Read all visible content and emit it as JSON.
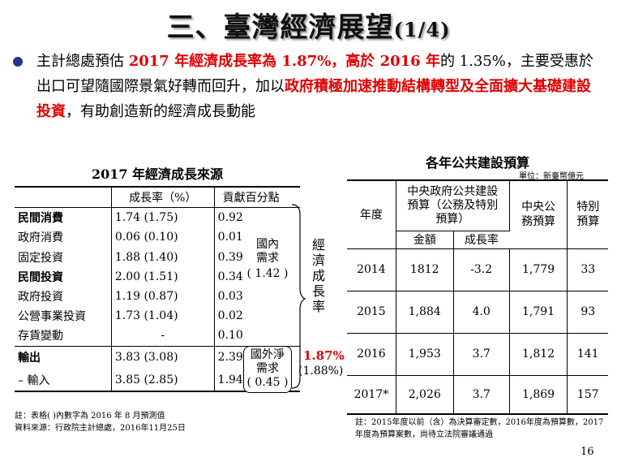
{
  "page": {
    "title_main": "三、臺灣經濟展望",
    "title_suffix": "(1/4)",
    "page_number": "16"
  },
  "bullet": {
    "segments": [
      {
        "text": "主計總處預估 ",
        "style": "normal"
      },
      {
        "text": "2017 年經濟成長率為 1.87%，高於 2016 年",
        "style": "red"
      },
      {
        "text": "的 1.35%，主要受惠於出口可望隨國際景氣好轉而回升，加以",
        "style": "normal"
      },
      {
        "text": "政府積極加速推動結構轉型及全面擴大基礎建設投資",
        "style": "red"
      },
      {
        "text": "，有助創造新的經濟成長動能",
        "style": "normal"
      }
    ]
  },
  "growth_table": {
    "title": "2017 年經濟成長來源",
    "header_rate": "成長率（%）",
    "header_contrib": "貢獻百分點",
    "rows": [
      {
        "label": "民間消費",
        "rate": "1.74 (1.75)",
        "contrib": "0.92",
        "bold": true
      },
      {
        "label": "政府消費",
        "rate": "0.06 (0.10)",
        "contrib": "0.01",
        "bold": false
      },
      {
        "label": "固定投資",
        "rate": "1.88 (1.40)",
        "contrib": "0.39",
        "bold": false
      },
      {
        "label": "民間投資",
        "rate": "2.00 (1.51)",
        "contrib": "0.34",
        "bold": true
      },
      {
        "label": "政府投資",
        "rate": "1.19 (0.87)",
        "contrib": "0.03",
        "bold": false
      },
      {
        "label": "公營事業投資",
        "rate": "1.73 (1.04)",
        "contrib": "0.02",
        "bold": false
      },
      {
        "label": "存貨變動",
        "rate": "-",
        "contrib": "0.10",
        "bold": false
      },
      {
        "label": "輸出",
        "rate": "3.83 (3.08)",
        "contrib": "2.39",
        "bold": true
      },
      {
        "label": "– 輸入",
        "rate": "3.85 (2.85)",
        "contrib": "1.94",
        "bold": false
      }
    ],
    "domestic_label": "國內需求",
    "domestic_value": "( 1.42 )",
    "external_label": "國外淨需求",
    "external_value": "( 0.45 )",
    "gdp_label": "經濟成長率",
    "gdp_value": "1.87%",
    "gdp_prev": "(1.88%)",
    "notes": [
      "註：表格( )內數字為 2016 年 8 月預測值",
      "資料來源：行政院主計總處，2016年11月25日"
    ]
  },
  "budget_table": {
    "title": "各年公共建設預算",
    "unit": "單位：新臺幣億元",
    "header_year": "年度",
    "header_central_special": "中央政府公共建設預算（公務及特別預算）",
    "header_amount": "金額",
    "header_growth": "成長率",
    "header_central": "中央公務預算",
    "header_special": "特別預算",
    "rows": [
      {
        "year": "2014",
        "amount": "1812",
        "growth": "-3.2",
        "central": "1,779",
        "special": "33"
      },
      {
        "year": "2015",
        "amount": "1,884",
        "growth": "4.0",
        "central": "1,791",
        "special": "93"
      },
      {
        "year": "2016",
        "amount": "1,953",
        "growth": "3.7",
        "central": "1,812",
        "special": "141"
      },
      {
        "year": "2017*",
        "amount": "2,026",
        "growth": "3.7",
        "central": "1,869",
        "special": "157"
      }
    ],
    "note": "註：2015年度以前（含）為決算審定數，2016年度為預算數，2017年度為預算案數，尚待立法院審議通過"
  }
}
